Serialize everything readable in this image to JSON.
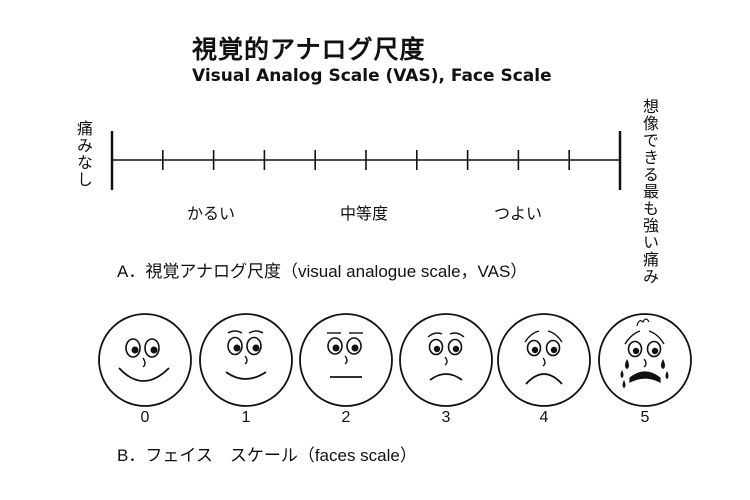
{
  "header": {
    "title_ja": "視覚的アナログ尺度",
    "title_en": "Visual Analog Scale (VAS), Face Scale"
  },
  "vas": {
    "left_label": "痛みなし",
    "right_label": "想像できる最も強い痛み",
    "right_label_col1": "想像できる",
    "right_label_col2": "最も強い痛み",
    "zones": [
      "かるい",
      "中等度",
      "つよい"
    ],
    "tick_count": 9,
    "caption": "A．視覚アナログ尺度（visual analogue scale，VAS）"
  },
  "faces": {
    "items": [
      {
        "score": "0",
        "expression": "very-happy-face"
      },
      {
        "score": "1",
        "expression": "happy-face"
      },
      {
        "score": "2",
        "expression": "neutral-face"
      },
      {
        "score": "3",
        "expression": "slightly-sad-face"
      },
      {
        "score": "4",
        "expression": "sad-face"
      },
      {
        "score": "5",
        "expression": "crying-face"
      }
    ],
    "caption": "B．フェイス　スケール（faces scale）"
  },
  "colors": {
    "ink": "#111111",
    "background": "#ffffff"
  }
}
